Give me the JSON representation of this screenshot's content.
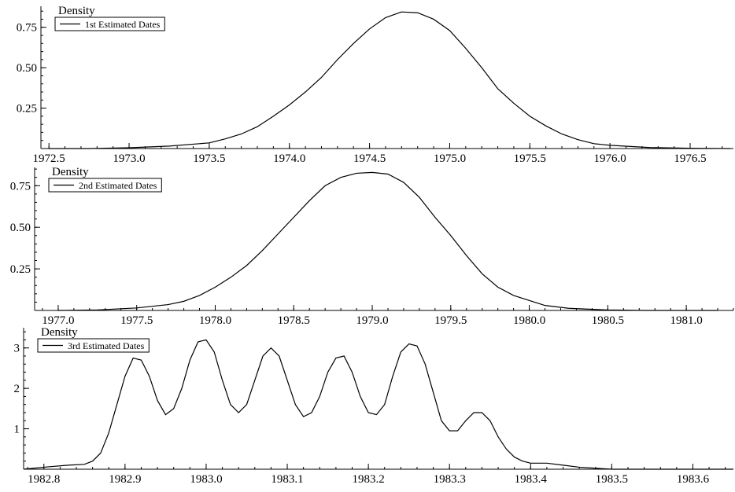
{
  "chart_data": [
    {
      "type": "line",
      "ylabel": "Density",
      "xlabel": "",
      "xlim": [
        1972.45,
        1976.77
      ],
      "ylim": [
        0,
        0.88
      ],
      "xticks": [
        "1972.5",
        "1973.0",
        "1973.5",
        "1974.0",
        "1974.5",
        "1975.0",
        "1975.5",
        "1976.0",
        "1976.5"
      ],
      "yticks": [
        "0.25",
        "0.50",
        "0.75"
      ],
      "series": [
        {
          "name": "1st Estimated Dates",
          "x": [
            1972.5,
            1972.75,
            1973.0,
            1973.25,
            1973.5,
            1973.6,
            1973.7,
            1973.8,
            1973.9,
            1974.0,
            1974.1,
            1974.2,
            1974.3,
            1974.4,
            1974.5,
            1974.6,
            1974.7,
            1974.8,
            1974.9,
            1975.0,
            1975.1,
            1975.2,
            1975.3,
            1975.4,
            1975.5,
            1975.6,
            1975.7,
            1975.8,
            1975.9,
            1976.0,
            1976.25,
            1976.5,
            1976.75
          ],
          "y": [
            0.0,
            0.0,
            0.005,
            0.015,
            0.035,
            0.06,
            0.09,
            0.135,
            0.2,
            0.27,
            0.35,
            0.44,
            0.55,
            0.65,
            0.74,
            0.81,
            0.845,
            0.84,
            0.8,
            0.73,
            0.62,
            0.5,
            0.37,
            0.28,
            0.2,
            0.14,
            0.09,
            0.055,
            0.03,
            0.02,
            0.006,
            0.002,
            0.0
          ]
        }
      ]
    },
    {
      "type": "line",
      "ylabel": "Density",
      "xlabel": "",
      "xlim": [
        1976.85,
        1981.3
      ],
      "ylim": [
        0,
        0.86
      ],
      "xticks": [
        "1977.0",
        "1977.5",
        "1978.0",
        "1978.5",
        "1979.0",
        "1979.5",
        "1980.0",
        "1980.5",
        "1981.0"
      ],
      "yticks": [
        "0.25",
        "0.50",
        "0.75"
      ],
      "series": [
        {
          "name": "2nd Estimated Dates",
          "x": [
            1977.0,
            1977.25,
            1977.5,
            1977.6,
            1977.7,
            1977.8,
            1977.9,
            1978.0,
            1978.1,
            1978.2,
            1978.3,
            1978.4,
            1978.5,
            1978.6,
            1978.7,
            1978.8,
            1978.9,
            1979.0,
            1979.1,
            1979.2,
            1979.3,
            1979.4,
            1979.5,
            1979.6,
            1979.7,
            1979.8,
            1979.9,
            1980.0,
            1980.1,
            1980.25,
            1980.5,
            1980.75,
            1981.0,
            1981.2
          ],
          "y": [
            0.0,
            0.003,
            0.015,
            0.025,
            0.035,
            0.055,
            0.09,
            0.14,
            0.2,
            0.27,
            0.36,
            0.46,
            0.56,
            0.66,
            0.75,
            0.8,
            0.825,
            0.83,
            0.82,
            0.77,
            0.68,
            0.56,
            0.45,
            0.33,
            0.22,
            0.14,
            0.09,
            0.06,
            0.03,
            0.013,
            0.003,
            0.0,
            0.0,
            0.0
          ]
        }
      ]
    },
    {
      "type": "line",
      "ylabel": "Density",
      "xlabel": "",
      "xlim": [
        1982.775,
        1983.65
      ],
      "ylim": [
        0,
        3.5
      ],
      "xticks": [
        "1982.8",
        "1982.9",
        "1983.0",
        "1983.1",
        "1983.2",
        "1983.3",
        "1983.4",
        "1983.5",
        "1983.6"
      ],
      "yticks": [
        "1",
        "2",
        "3"
      ],
      "series": [
        {
          "name": "3rd Estimated Dates",
          "x": [
            1982.775,
            1982.8,
            1982.83,
            1982.85,
            1982.86,
            1982.87,
            1982.88,
            1982.89,
            1982.9,
            1982.91,
            1982.92,
            1982.93,
            1982.94,
            1982.95,
            1982.96,
            1982.97,
            1982.98,
            1982.99,
            1983.0,
            1983.01,
            1983.02,
            1983.03,
            1983.04,
            1983.05,
            1983.06,
            1983.07,
            1983.08,
            1983.09,
            1983.1,
            1983.11,
            1983.12,
            1983.13,
            1983.14,
            1983.15,
            1983.16,
            1983.17,
            1983.18,
            1983.19,
            1983.2,
            1983.21,
            1983.22,
            1983.23,
            1983.24,
            1983.25,
            1983.26,
            1983.27,
            1983.28,
            1983.29,
            1983.3,
            1983.31,
            1983.32,
            1983.33,
            1983.34,
            1983.35,
            1983.36,
            1983.37,
            1983.38,
            1983.39,
            1983.4,
            1983.42,
            1983.44,
            1983.46,
            1983.5,
            1983.65
          ],
          "y": [
            0.0,
            0.05,
            0.1,
            0.12,
            0.2,
            0.4,
            0.9,
            1.6,
            2.3,
            2.75,
            2.7,
            2.3,
            1.7,
            1.35,
            1.5,
            2.0,
            2.7,
            3.15,
            3.2,
            2.9,
            2.2,
            1.6,
            1.4,
            1.6,
            2.2,
            2.8,
            3.0,
            2.8,
            2.2,
            1.6,
            1.3,
            1.4,
            1.8,
            2.4,
            2.75,
            2.8,
            2.4,
            1.8,
            1.4,
            1.35,
            1.6,
            2.3,
            2.9,
            3.1,
            3.05,
            2.6,
            1.9,
            1.2,
            0.95,
            0.95,
            1.2,
            1.4,
            1.4,
            1.2,
            0.8,
            0.5,
            0.3,
            0.2,
            0.15,
            0.15,
            0.1,
            0.05,
            0.0,
            0.0
          ]
        }
      ]
    }
  ]
}
